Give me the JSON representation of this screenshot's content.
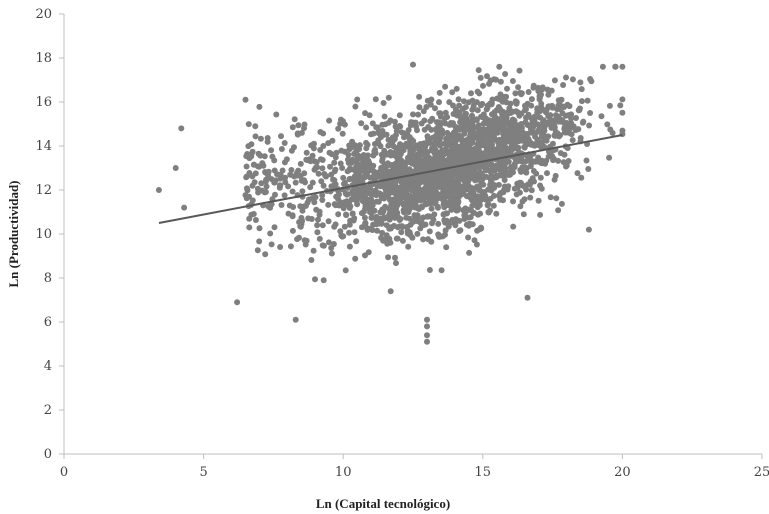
{
  "chart_data": {
    "type": "scatter",
    "title": "",
    "xlabel": "Ln (Capital tecnológico)",
    "ylabel": "Ln (Productividad)",
    "xlim": [
      0,
      25
    ],
    "ylim": [
      0,
      20
    ],
    "x_ticks": [
      "0",
      "5",
      "10",
      "15",
      "20",
      "25"
    ],
    "y_ticks": [
      "0",
      "2",
      "4",
      "6",
      "8",
      "10",
      "12",
      "14",
      "16",
      "18",
      "20"
    ],
    "grid": false,
    "legend": "none",
    "colors": {
      "points": "#7f7f7f",
      "trendline": "#595959",
      "axis": "#bfbfbf"
    },
    "trendline": {
      "type": "linear",
      "x": [
        3.4,
        20.0
      ],
      "y": [
        10.5,
        14.5
      ]
    },
    "point_cloud": {
      "approx_count": 2400,
      "x_range": [
        3.3,
        20.0
      ],
      "y_range": [
        5.0,
        17.7
      ],
      "main_cluster_center": [
        13.0,
        12.8
      ],
      "notable_points": [
        {
          "x": 3.4,
          "y": 12.0
        },
        {
          "x": 4.2,
          "y": 14.8
        },
        {
          "x": 4.3,
          "y": 11.2
        },
        {
          "x": 4.0,
          "y": 13.0
        },
        {
          "x": 6.2,
          "y": 6.9
        },
        {
          "x": 6.5,
          "y": 16.1
        },
        {
          "x": 8.3,
          "y": 6.1
        },
        {
          "x": 12.5,
          "y": 17.7
        },
        {
          "x": 13.0,
          "y": 5.1
        },
        {
          "x": 13.0,
          "y": 5.4
        },
        {
          "x": 13.0,
          "y": 5.8
        },
        {
          "x": 13.0,
          "y": 6.1
        },
        {
          "x": 16.6,
          "y": 7.1
        },
        {
          "x": 19.3,
          "y": 17.6
        },
        {
          "x": 20.0,
          "y": 14.7
        },
        {
          "x": 18.8,
          "y": 10.2
        },
        {
          "x": 9.3,
          "y": 7.9
        },
        {
          "x": 11.7,
          "y": 7.4
        }
      ]
    }
  }
}
